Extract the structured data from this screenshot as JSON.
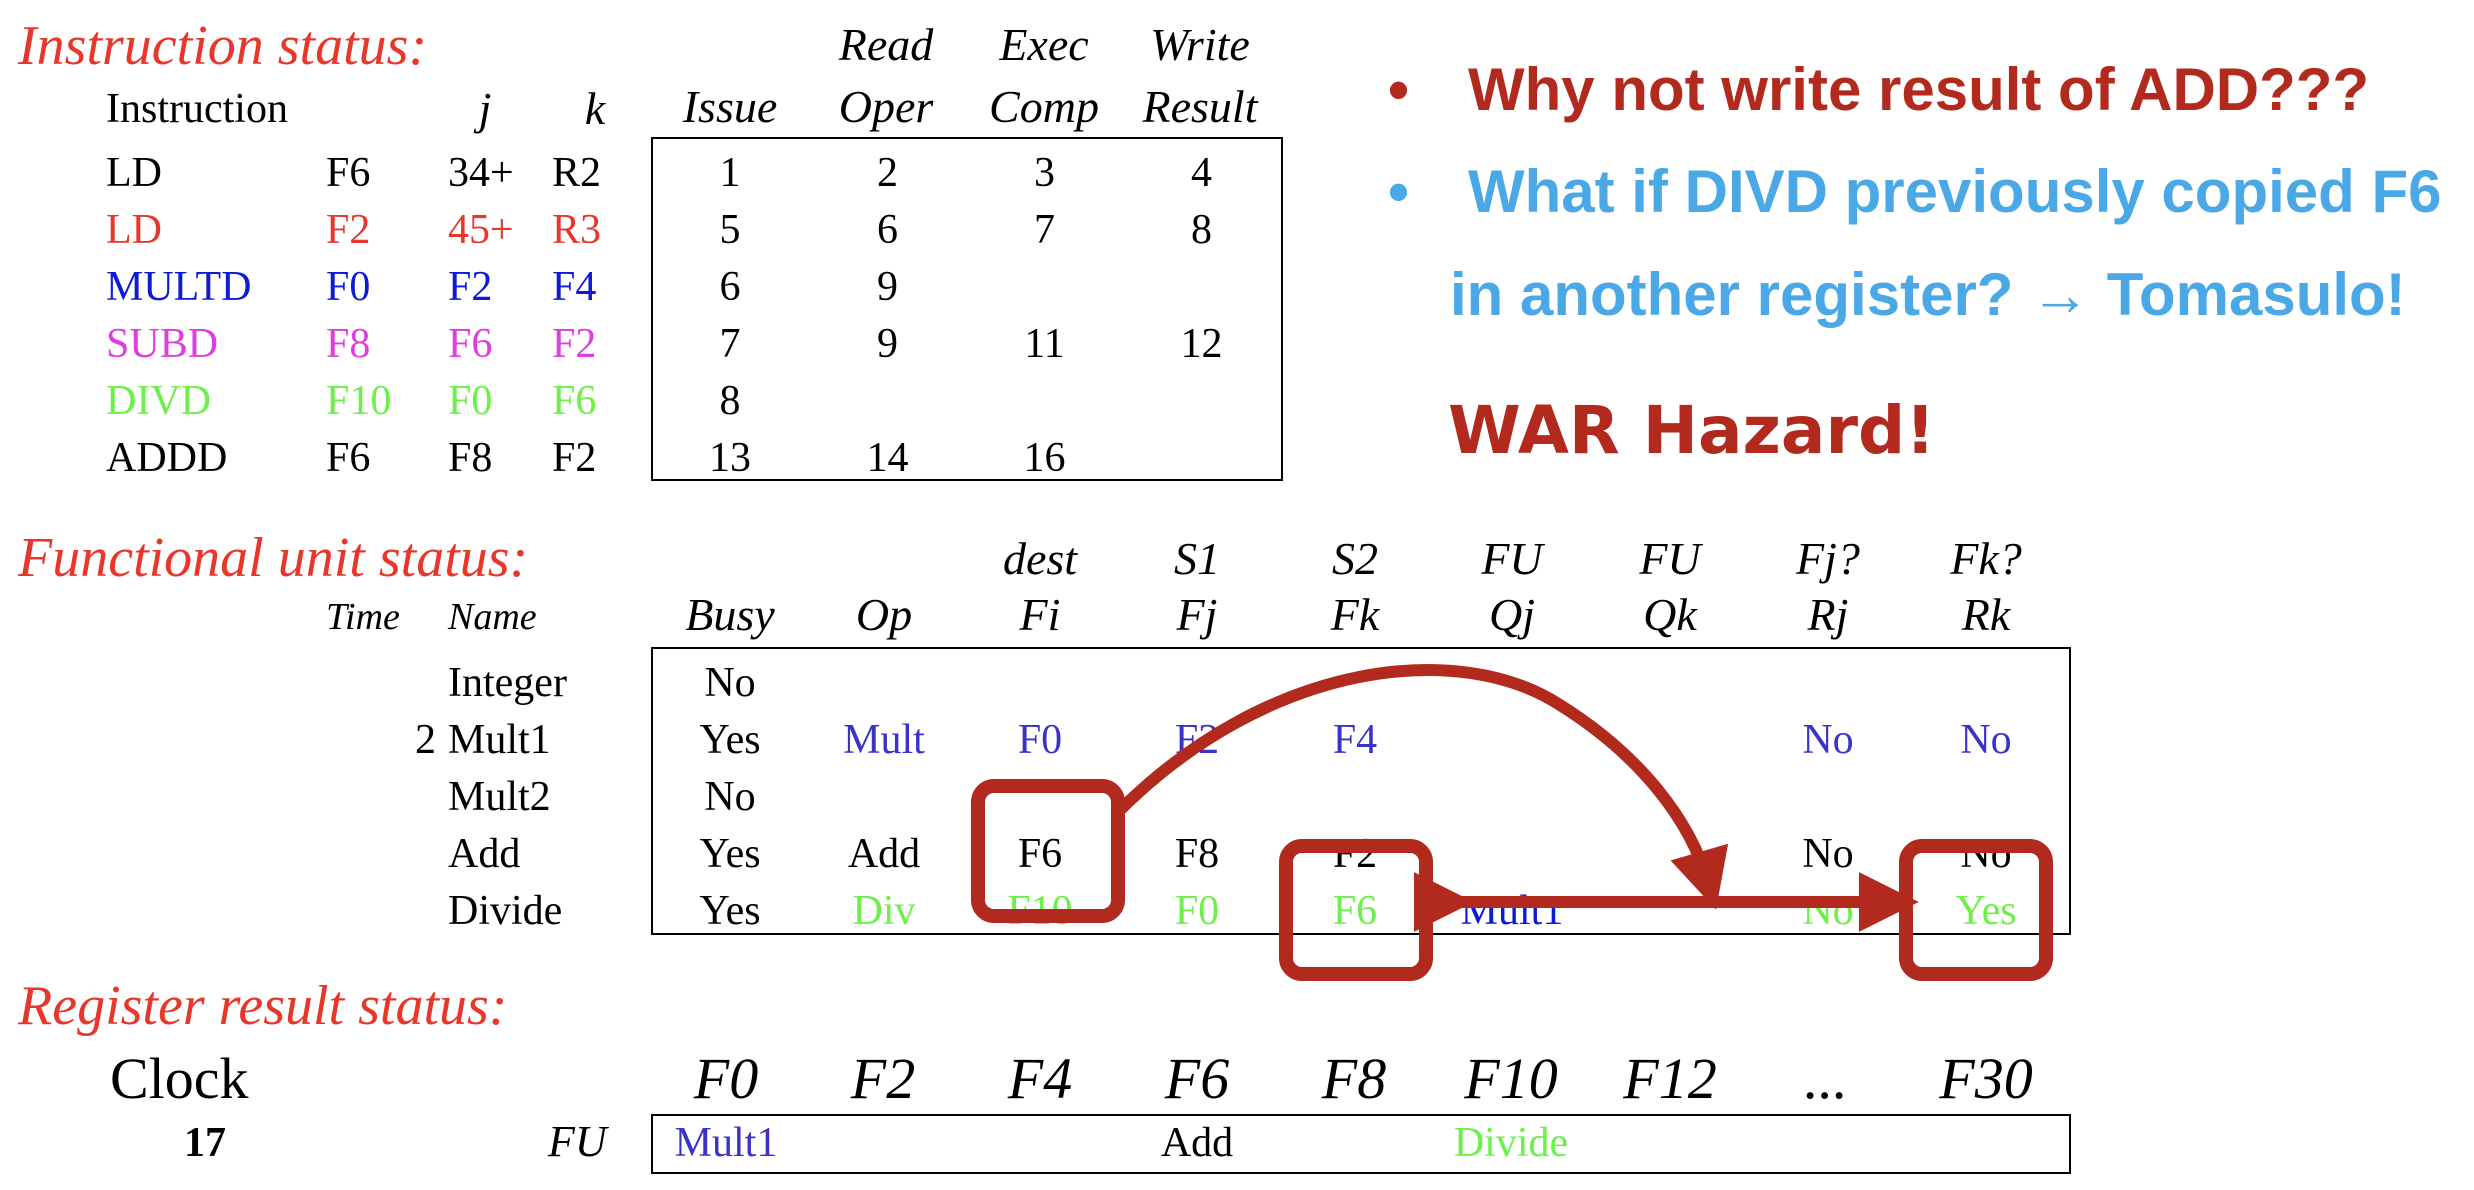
{
  "colors": {
    "section_title": "#e8362a",
    "black": "#000000",
    "red": "#e8362a",
    "blue": "#0d1ad6",
    "magenta": "#e03ce0",
    "green": "#6df04a",
    "unit_blue": "#3a33c9",
    "bullet_red": "#b22a1d",
    "bullet_blue": "#4aa8e6",
    "annotation": "#b22a1d"
  },
  "instruction_status": {
    "title": "Instruction status:",
    "header_top": [
      "Read",
      "Exec",
      "Write"
    ],
    "header_bottom": [
      "Instruction",
      "j",
      "k",
      "Issue",
      "Oper",
      "Comp",
      "Result"
    ],
    "rows": [
      {
        "op": "LD",
        "dest": "F6",
        "j": "34+",
        "k": "R2",
        "issue": "1",
        "read": "2",
        "exec": "3",
        "write": "4",
        "color": "#000000"
      },
      {
        "op": "LD",
        "dest": "F2",
        "j": "45+",
        "k": "R3",
        "issue": "5",
        "read": "6",
        "exec": "7",
        "write": "8",
        "color": "#e8362a"
      },
      {
        "op": "MULTD",
        "dest": "F0",
        "j": "F2",
        "k": "F4",
        "issue": "6",
        "read": "9",
        "exec": "",
        "write": "",
        "color": "#0d1ad6"
      },
      {
        "op": "SUBD",
        "dest": "F8",
        "j": "F6",
        "k": "F2",
        "issue": "7",
        "read": "9",
        "exec": "11",
        "write": "12",
        "color": "#e03ce0"
      },
      {
        "op": "DIVD",
        "dest": "F10",
        "j": "F0",
        "k": "F6",
        "issue": "8",
        "read": "",
        "exec": "",
        "write": "",
        "color": "#6df04a"
      },
      {
        "op": "ADDD",
        "dest": "F6",
        "j": "F8",
        "k": "F2",
        "issue": "13",
        "read": "14",
        "exec": "16",
        "write": "",
        "color": "#000000"
      }
    ]
  },
  "bullets": [
    {
      "text": "Why not write result of ADD???",
      "color": "#b22a1d"
    },
    {
      "text": "What if DIVD previously copied F6",
      "color": "#4aa8e6"
    },
    {
      "text": "in another register? → Tomasulo!",
      "color": "#4aa8e6"
    }
  ],
  "war_label": "WAR Hazard!",
  "functional_unit_status": {
    "title": "Functional unit status:",
    "header_top": [
      "dest",
      "S1",
      "S2",
      "FU",
      "FU",
      "Fj?",
      "Fk?"
    ],
    "header_bottom": [
      "Time",
      "Name",
      "Busy",
      "Op",
      "Fi",
      "Fj",
      "Fk",
      "Qj",
      "Qk",
      "Rj",
      "Rk"
    ],
    "rows": [
      {
        "time": "",
        "name": "Integer",
        "busy": "No",
        "op": "",
        "fi": "",
        "fj": "",
        "fk": "",
        "qj": "",
        "qk": "",
        "rj": "",
        "rk": "",
        "color": "#000000"
      },
      {
        "time": "2",
        "name": "Mult1",
        "busy": "Yes",
        "op": "Mult",
        "fi": "F0",
        "fj": "F2",
        "fk": "F4",
        "qj": "",
        "qk": "",
        "rj": "No",
        "rk": "No",
        "color": "#3a33c9"
      },
      {
        "time": "",
        "name": "Mult2",
        "busy": "No",
        "op": "",
        "fi": "",
        "fj": "",
        "fk": "",
        "qj": "",
        "qk": "",
        "rj": "",
        "rk": "",
        "color": "#000000"
      },
      {
        "time": "",
        "name": "Add",
        "busy": "Yes",
        "op": "Add",
        "fi": "F6",
        "fj": "F8",
        "fk": "F2",
        "qj": "",
        "qk": "",
        "rj": "No",
        "rk": "No",
        "color": "#000000"
      },
      {
        "time": "",
        "name": "Divide",
        "busy": "Yes",
        "op": "Div",
        "fi": "F10",
        "fj": "F0",
        "fk": "F6",
        "qj": "Mult1",
        "qk": "",
        "rj": "No",
        "rk": "Yes",
        "color": "#6df04a"
      }
    ]
  },
  "register_result_status": {
    "title": "Register result status:",
    "clock_label": "Clock",
    "clock_value": "17",
    "fu_label": "FU",
    "registers": [
      "F0",
      "F2",
      "F4",
      "F6",
      "F8",
      "F10",
      "F12",
      "...",
      "F30"
    ],
    "values": [
      {
        "text": "Mult1",
        "color": "#3a33c9"
      },
      {
        "text": "",
        "color": "#000000"
      },
      {
        "text": "",
        "color": "#000000"
      },
      {
        "text": "Add",
        "color": "#000000"
      },
      {
        "text": "",
        "color": "#000000"
      },
      {
        "text": "Divide",
        "color": "#6df04a"
      },
      {
        "text": "",
        "color": "#000000"
      },
      {
        "text": "",
        "color": "#000000"
      },
      {
        "text": "",
        "color": "#000000"
      }
    ]
  }
}
